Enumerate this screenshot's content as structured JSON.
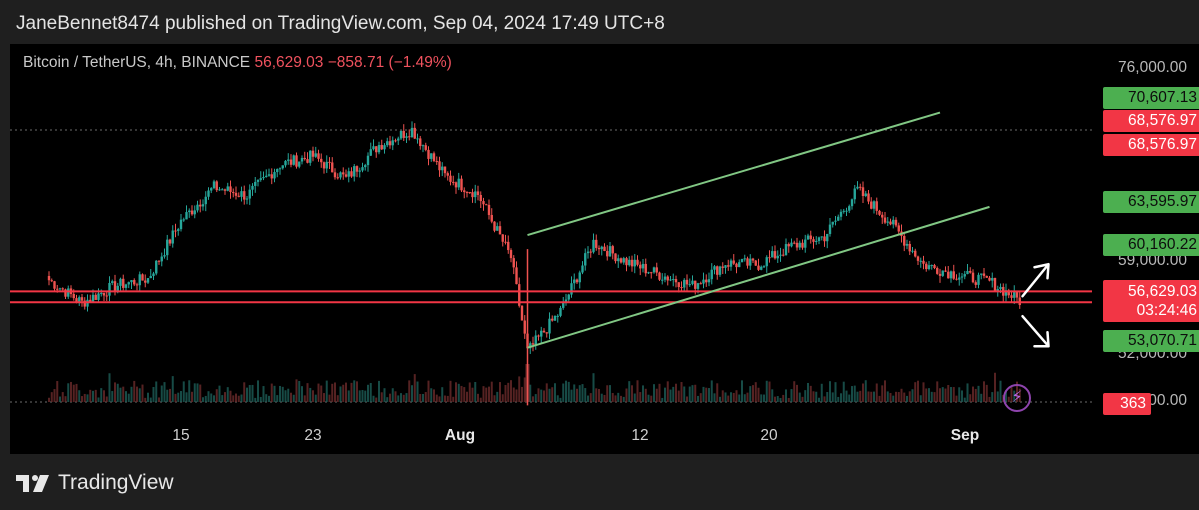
{
  "header": {
    "text": "JaneBennet8474 published on TradingView.com, Sep 04, 2024 17:49 UTC+8"
  },
  "legend": {
    "symbol": "Bitcoin / TetherUS, 4h, BINANCE",
    "price": "56,629.03",
    "change": "−858.71 (−1.49%)"
  },
  "colors": {
    "up": "#26a69a",
    "down": "#ef5350",
    "channel": "#81c784",
    "level": "#f23645",
    "tag_green": "#4caf50",
    "tag_red": "#f23645"
  },
  "price_axis": {
    "labels": [
      "76,000.00",
      "59,000.00",
      "52,000.00",
      "00.00"
    ]
  },
  "price_tags": [
    {
      "text": "70,607.13",
      "kind": "green"
    },
    {
      "text": "68,576.97",
      "kind": "red"
    },
    {
      "text": "68,576.97",
      "kind": "red"
    },
    {
      "text": "63,595.97",
      "kind": "green"
    },
    {
      "text": "60,160.22",
      "kind": "green"
    },
    {
      "text": "56,629.03",
      "kind": "red",
      "sub": "03:24:46"
    },
    {
      "text": "53,070.71",
      "kind": "green"
    },
    {
      "text": "363",
      "kind": "vol"
    }
  ],
  "date_axis": {
    "labels": [
      {
        "text": "15",
        "bold": false
      },
      {
        "text": "23",
        "bold": false
      },
      {
        "text": "Aug",
        "bold": true
      },
      {
        "text": "12",
        "bold": false
      },
      {
        "text": "20",
        "bold": false
      },
      {
        "text": "Sep",
        "bold": true
      }
    ]
  },
  "footer": {
    "brand": "TradingView"
  },
  "chart_data": {
    "type": "line",
    "interval": "4h",
    "ylim": [
      49000,
      76000
    ],
    "x_ticks": [
      "15",
      "23",
      "Aug",
      "12",
      "20",
      "Sep"
    ],
    "x": [
      "Jul 07",
      "Jul 09",
      "Jul 11",
      "Jul 13",
      "Jul 15",
      "Jul 17",
      "Jul 19",
      "Jul 21",
      "Jul 23",
      "Jul 25",
      "Jul 27",
      "Jul 29",
      "Jul 31",
      "Aug 02",
      "Aug 04",
      "Aug 05",
      "Aug 07",
      "Aug 09",
      "Aug 11",
      "Aug 13",
      "Aug 15",
      "Aug 17",
      "Aug 19",
      "Aug 21",
      "Aug 23",
      "Aug 25",
      "Aug 27",
      "Aug 29",
      "Aug 31",
      "Sep 02",
      "Sep 04"
    ],
    "series": [
      {
        "values": [
          58200,
          56600,
          57800,
          58300,
          62400,
          64800,
          64200,
          66400,
          67000,
          65400,
          67800,
          68900,
          65600,
          64300,
          59800,
          53100,
          56000,
          60900,
          59500,
          58600,
          57800,
          59400,
          59300,
          60600,
          61300,
          64600,
          62300,
          59300,
          58600,
          58100,
          56629
        ]
      }
    ],
    "levels": {
      "resistance_lines": [
        68576.97
      ],
      "support_lines": [
        57400,
        56629.03
      ]
    },
    "channel": {
      "upper": [
        {
          "x": "Aug 05",
          "y": 61400
        },
        {
          "x": "Aug 30",
          "y": 70100
        }
      ],
      "lower": [
        {
          "x": "Aug 05",
          "y": 53400
        },
        {
          "x": "Sep 02",
          "y": 63400
        }
      ]
    },
    "annotations": [
      "up-arrow",
      "down-arrow"
    ],
    "grid": false,
    "legend": "top-left"
  }
}
